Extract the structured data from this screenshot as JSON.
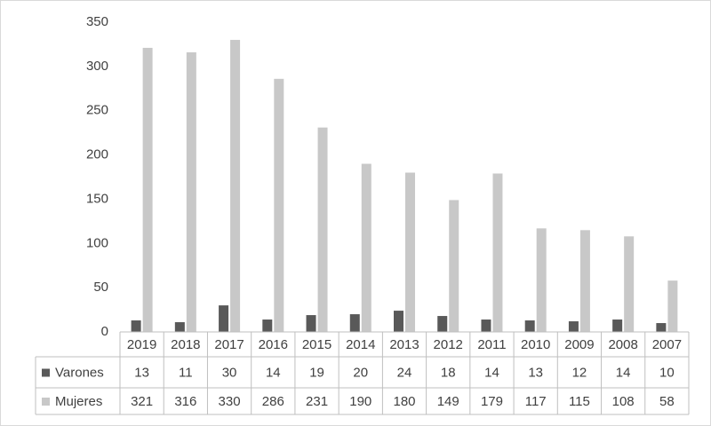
{
  "chart_data": {
    "type": "bar",
    "categories": [
      "2019",
      "2018",
      "2017",
      "2016",
      "2015",
      "2014",
      "2013",
      "2012",
      "2011",
      "2010",
      "2009",
      "2008",
      "2007"
    ],
    "series": [
      {
        "name": "Varones",
        "color": "#595959",
        "values": [
          13,
          11,
          30,
          14,
          19,
          20,
          24,
          18,
          14,
          13,
          12,
          14,
          10
        ]
      },
      {
        "name": "Mujeres",
        "color": "#c8c8c8",
        "values": [
          321,
          316,
          330,
          286,
          231,
          190,
          180,
          149,
          179,
          117,
          115,
          108,
          58
        ]
      }
    ],
    "ylim": [
      0,
      350
    ],
    "yticks": [
      0,
      50,
      100,
      150,
      200,
      250,
      300,
      350
    ],
    "grid": false,
    "data_table": true
  }
}
